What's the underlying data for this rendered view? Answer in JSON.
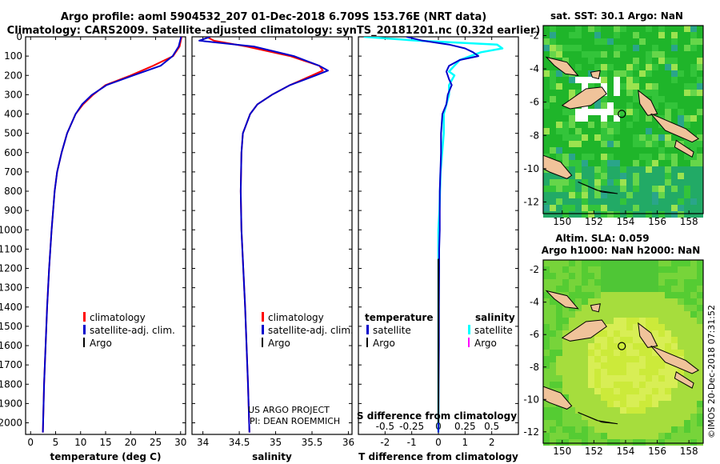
{
  "header": {
    "line1": "Argo profile: aoml 5904532_207 01-Dec-2018 6.709S 153.76E (NRT data)",
    "line2": "Climatology: CARS2009. Satellite-adjusted climatology: synTS_20181201.nc (0.32d earlier)"
  },
  "colors": {
    "climatology": "#ff0000",
    "satellite": "#0000cc",
    "argo": "#000000",
    "sat_salinity": "#00ffff",
    "argo_salinity": "#ff00ff"
  },
  "chart_data": [
    {
      "type": "line",
      "id": "temperature",
      "xlabel": "temperature (deg C)",
      "ylim": [
        2060,
        0
      ],
      "xlim": [
        -1,
        31
      ],
      "xticks": [
        0,
        5,
        10,
        15,
        20,
        25,
        30
      ],
      "yticks": [
        0,
        100,
        200,
        300,
        400,
        500,
        600,
        700,
        800,
        900,
        1000,
        1100,
        1200,
        1300,
        1400,
        1500,
        1600,
        1700,
        1800,
        1900,
        2000
      ],
      "legend": [
        "climatology",
        "satellite-adj. clim.",
        "Argo"
      ],
      "legend_position": "lower-center",
      "series": [
        {
          "name": "climatology",
          "depth": [
            0,
            50,
            100,
            150,
            200,
            250,
            300,
            350,
            400,
            500,
            600,
            700,
            800,
            1000,
            1200,
            1400,
            1600,
            1800,
            2000,
            2050
          ],
          "values": [
            30.2,
            29.8,
            28.5,
            24.5,
            20,
            15,
            12.5,
            10.5,
            9,
            7.3,
            6.2,
            5.3,
            4.8,
            4.2,
            3.7,
            3.3,
            3,
            2.7,
            2.5,
            2.45
          ]
        },
        {
          "name": "satellite-adj. clim.",
          "depth": [
            0,
            50,
            100,
            150,
            200,
            250,
            300,
            350,
            400,
            500,
            600,
            700,
            800,
            1000,
            1200,
            1400,
            1600,
            1800,
            2000,
            2050
          ],
          "values": [
            30.1,
            29.6,
            28.4,
            26,
            20.5,
            15.2,
            12.3,
            10.3,
            9,
            7.3,
            6.2,
            5.3,
            4.8,
            4.2,
            3.7,
            3.3,
            3,
            2.7,
            2.5,
            2.45
          ]
        }
      ]
    },
    {
      "type": "line",
      "id": "salinity",
      "xlabel": "salinity",
      "ylim": [
        2060,
        0
      ],
      "xlim": [
        33.85,
        36.05
      ],
      "xticks": [
        34,
        34.5,
        35,
        35.5,
        36
      ],
      "legend": [
        "climatology",
        "satellite-adj. clim.",
        "Argo"
      ],
      "legend_position": "lower-right",
      "annotation": [
        "US ARGO PROJECT",
        "PI: DEAN ROEMMICH"
      ],
      "series": [
        {
          "name": "climatology",
          "depth": [
            0,
            20,
            50,
            100,
            150,
            175,
            200,
            250,
            300,
            350,
            400,
            500,
            600,
            800,
            1000,
            1400,
            1800,
            2050
          ],
          "values": [
            34.05,
            34.15,
            34.6,
            35.2,
            35.6,
            35.65,
            35.5,
            35.2,
            34.95,
            34.75,
            34.65,
            34.55,
            34.53,
            34.52,
            34.53,
            34.58,
            34.62,
            34.64
          ]
        },
        {
          "name": "satellite-adj. clim.",
          "depth": [
            0,
            20,
            50,
            100,
            150,
            175,
            200,
            250,
            300,
            350,
            400,
            500,
            600,
            800,
            1000,
            1400,
            1800,
            2050
          ],
          "values": [
            34.1,
            33.95,
            34.7,
            35.25,
            35.6,
            35.72,
            35.55,
            35.2,
            34.95,
            34.75,
            34.65,
            34.55,
            34.53,
            34.52,
            34.53,
            34.58,
            34.62,
            34.64
          ]
        }
      ]
    },
    {
      "type": "line",
      "id": "difference",
      "xlabel": "T difference from climatology",
      "xlabel_top": "S difference from climatology",
      "ylim": [
        2060,
        0
      ],
      "xlim": [
        -3,
        3
      ],
      "xticks": [
        -2,
        -1,
        0,
        1,
        2
      ],
      "xticks_top": [
        "-0.5",
        "-0.25",
        "0",
        "0.25",
        "0.5"
      ],
      "legend_left": [
        "temperature",
        "satellite",
        "Argo"
      ],
      "legend_right": [
        "salinity",
        "satellite",
        "Argo"
      ],
      "series": [
        {
          "name": "T satellite",
          "depth": [
            0,
            20,
            40,
            60,
            80,
            100,
            120,
            150,
            180,
            200,
            220,
            250,
            300,
            350,
            400,
            500,
            600,
            800,
            1000,
            1100,
            1200,
            1400,
            1600,
            1800,
            2050
          ],
          "values": [
            -1.2,
            -0.6,
            0.4,
            1,
            1.3,
            1.5,
            0.8,
            0.4,
            0.3,
            0.35,
            0.4,
            0.5,
            0.35,
            0.3,
            0.15,
            0.1,
            0.1,
            0.05,
            0.05,
            0.03,
            0.03,
            0.02,
            0.02,
            0.01,
            0
          ]
        },
        {
          "name": "S satellite",
          "depth": [
            0,
            20,
            40,
            60,
            80,
            100,
            120,
            150,
            180,
            200,
            250,
            300,
            400,
            500,
            700,
            900,
            1000,
            1200,
            1400,
            1600,
            1800,
            2050
          ],
          "values": [
            -0.7,
            -0.2,
            0.55,
            0.6,
            0.4,
            0.3,
            0.2,
            0.15,
            0.1,
            0.15,
            0.1,
            0.1,
            0.05,
            0.05,
            0.02,
            0.01,
            0,
            0,
            0,
            0,
            0,
            0
          ]
        },
        {
          "name": "Argo",
          "depth": [
            1150,
            1300,
            1450,
            1600,
            1750,
            1900,
            2000
          ],
          "values": [
            0,
            0,
            0,
            0,
            0,
            0,
            0
          ]
        }
      ]
    },
    {
      "type": "heatmap",
      "id": "sst_map",
      "title": "sat. SST: 30.1  Argo: NaN",
      "xlim": [
        148.8,
        158.9
      ],
      "ylim": [
        -12.7,
        -1.4
      ],
      "xticks": [
        150,
        152,
        154,
        156,
        158
      ],
      "yticks": [
        -2,
        -4,
        -6,
        -8,
        -10,
        -12
      ],
      "marker": {
        "lon": 153.76,
        "lat": -6.709
      }
    },
    {
      "type": "heatmap",
      "id": "sla_map",
      "title": "Altim. SLA: 0.059",
      "subtitle": "Argo h1000: NaN h2000: NaN",
      "xlim": [
        148.8,
        158.9
      ],
      "ylim": [
        -12.7,
        -1.4
      ],
      "xticks": [
        150,
        152,
        154,
        156,
        158
      ],
      "yticks": [
        -2,
        -4,
        -6,
        -8,
        -10,
        -12
      ],
      "marker": {
        "lon": 153.76,
        "lat": -6.709
      }
    }
  ],
  "side_label": "©IMOS 20-Dec-2018 07:31:52"
}
